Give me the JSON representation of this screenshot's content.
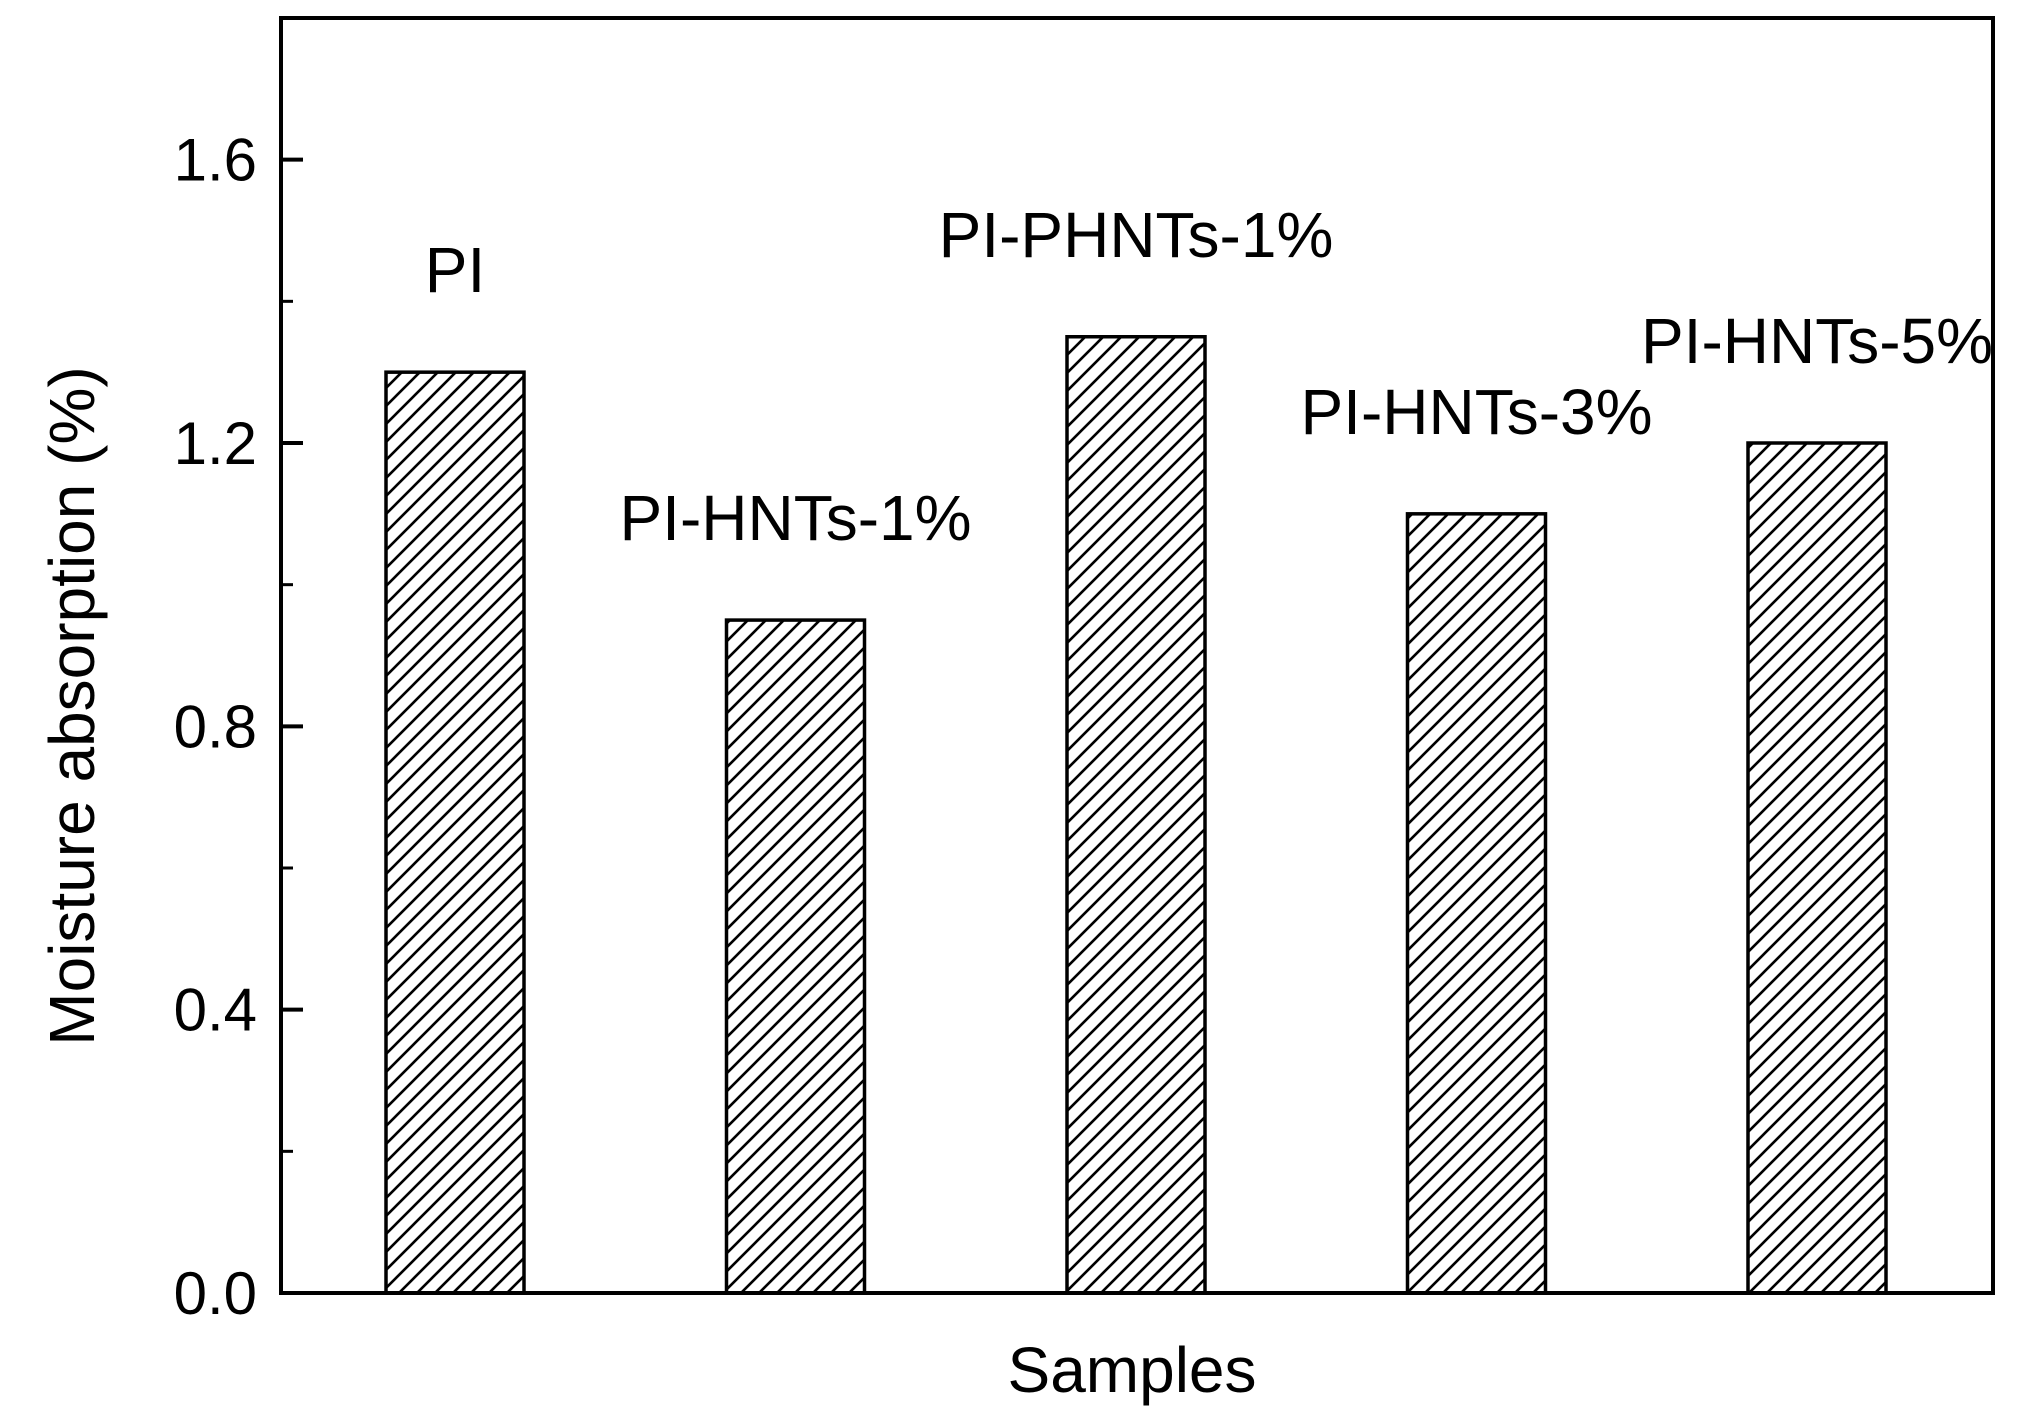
{
  "chart_data": {
    "type": "bar",
    "categories": [
      "PI",
      "PI-HNTs-1%",
      "PI-PHNTs-1%",
      "PI-HNTs-3%",
      "PI-HNTs-5%"
    ],
    "values": [
      1.3,
      0.95,
      1.35,
      1.1,
      1.2
    ],
    "xlabel": "Samples",
    "ylabel": "Moisture absorption (%)",
    "ylim": [
      0,
      1.8
    ],
    "yticks": [
      "0.0",
      "0.4",
      "0.8",
      "1.2",
      "1.6"
    ],
    "bar_fill": "diagonal-hatch",
    "colors": {
      "bar_stroke": "#000000",
      "hatch": "#000000",
      "background": "#ffffff",
      "axis": "#000000"
    }
  }
}
